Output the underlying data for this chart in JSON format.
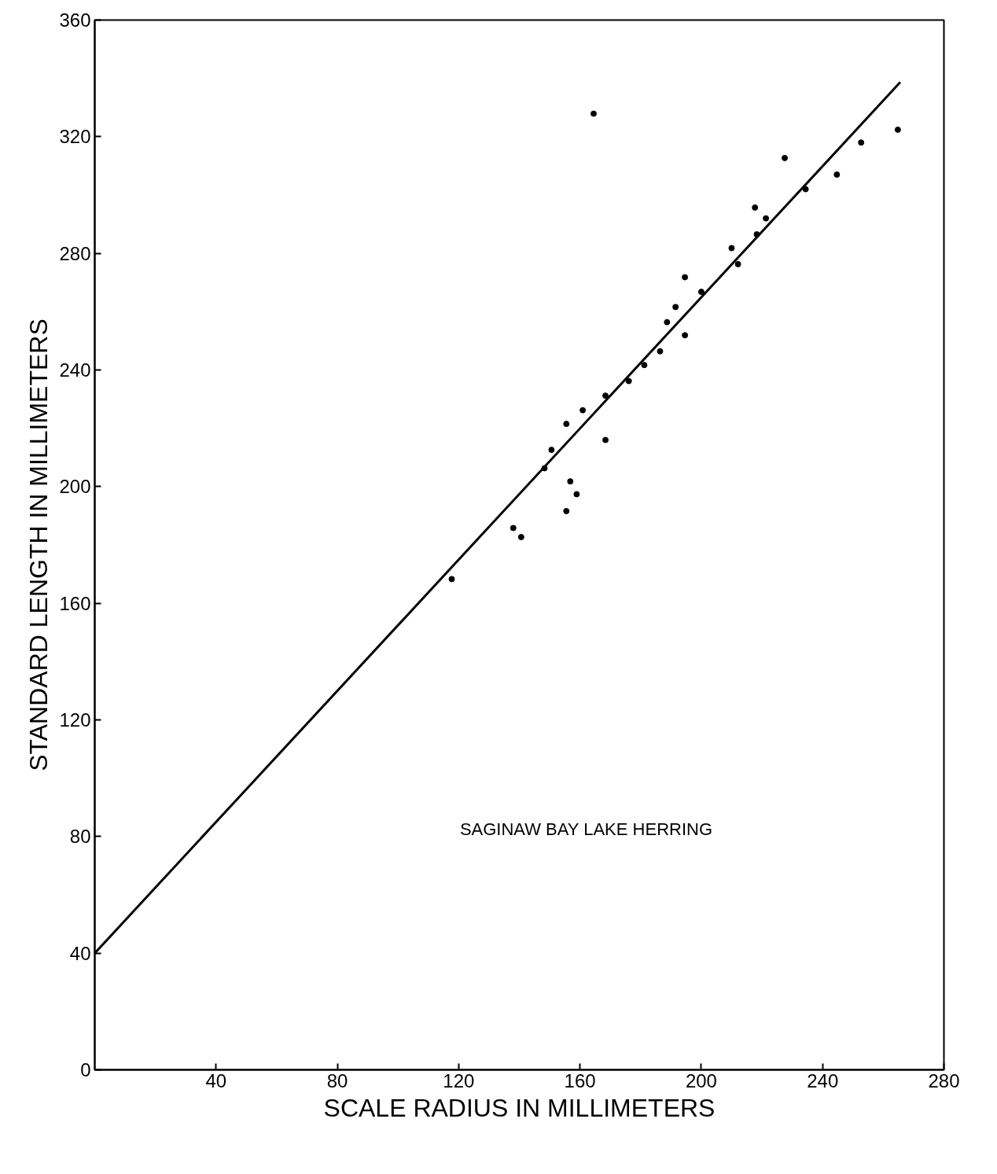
{
  "chart_data": {
    "type": "scatter",
    "xlabel": "SCALE RADIUS IN MILLIMETERS",
    "ylabel": "STANDARD LENGTH IN MILLIMETERS",
    "annotations": [
      "SAGINAW BAY LAKE HERRING"
    ],
    "xlim": [
      0,
      280
    ],
    "ylim": [
      0,
      360
    ],
    "xticks": [
      40,
      80,
      120,
      160,
      200,
      240,
      280
    ],
    "yticks": [
      0,
      40,
      80,
      120,
      160,
      200,
      240,
      280,
      320,
      360
    ],
    "grid": false,
    "marker": "circle",
    "series": [
      {
        "color": "#000000",
        "x": [
          117.7,
          138,
          140.6,
          148.3,
          150.6,
          155.5,
          155.5,
          156.8,
          158.9,
          160.9,
          164.5,
          168.4,
          168.4,
          176.1,
          181.2,
          186.4,
          188.7,
          191.5,
          194.6,
          194.6,
          200,
          210,
          212.1,
          217.7,
          218.3,
          221.3,
          227.5,
          234.4,
          244.7,
          252.7,
          264.8
        ],
        "values": [
          168.3,
          185.8,
          182.7,
          206.3,
          212.6,
          221.5,
          191.6,
          201.8,
          197.4,
          226.2,
          327.9,
          231.2,
          216,
          236.2,
          241.7,
          246.4,
          256.4,
          261.6,
          251.9,
          271.8,
          266.8,
          281.8,
          276.3,
          295.7,
          286.5,
          292,
          312.7,
          302,
          307,
          318,
          322.4
        ]
      },
      {
        "type": "line",
        "color": "#000000",
        "line_style": "solid",
        "marker": "none",
        "x": [
          0,
          265.6
        ],
        "values": [
          40,
          338.7
        ]
      }
    ]
  }
}
